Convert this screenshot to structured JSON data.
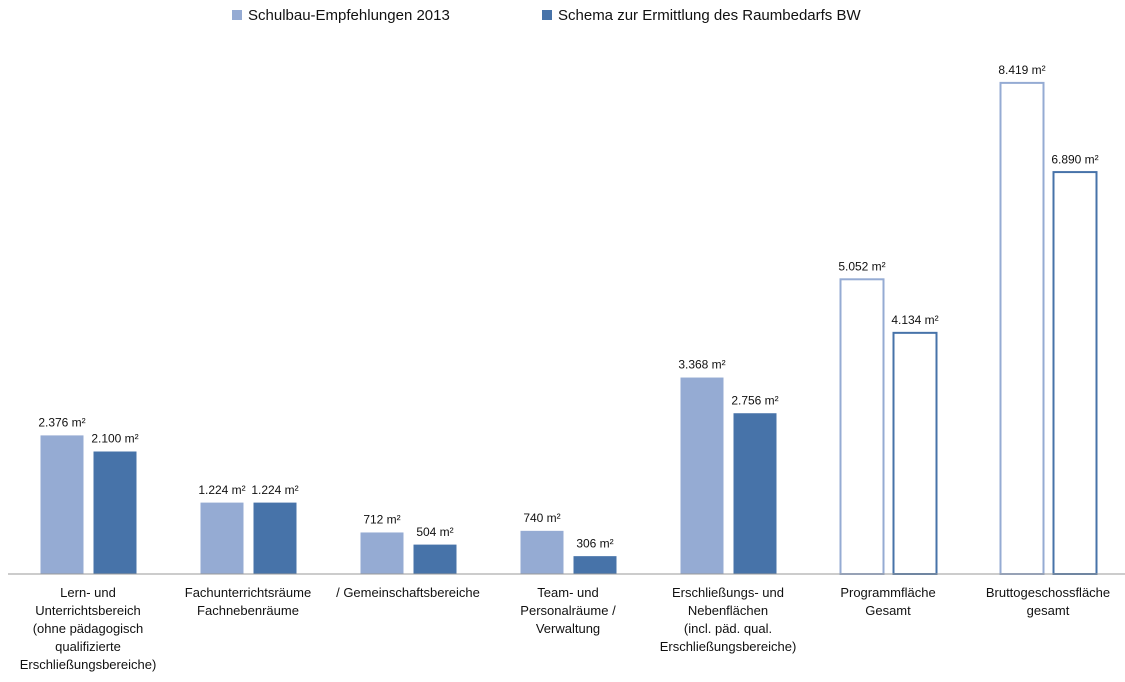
{
  "chart_data": {
    "type": "bar",
    "categories": [
      [
        "Lern- und",
        "Unterrichtsbereich",
        "(ohne pädagogisch",
        "qualifizierte",
        "Erschließungsbereiche)"
      ],
      [
        "Fachunterrichtsräume",
        "Fachnebenräume"
      ],
      [
        "/ Gemeinschaftsbereiche"
      ],
      [
        "Team- und",
        "Personalräume /",
        "Verwaltung"
      ],
      [
        "Erschließungs- und",
        "Nebenflächen",
        "(incl. päd. qual.",
        "Erschließungsbereiche)"
      ],
      [
        "Programmfläche",
        "Gesamt"
      ],
      [
        "Bruttogeschossfläche",
        "gesamt"
      ]
    ],
    "series": [
      {
        "name": "Schulbau-Empfehlungen 2013",
        "color": "#95abd3",
        "values": [
          2376,
          1224,
          712,
          740,
          3368,
          5052,
          8419
        ],
        "value_labels": [
          "2.376 m²",
          "1.224 m²",
          "712 m²",
          "740 m²",
          "3.368 m²",
          "5.052 m²",
          "8.419 m²"
        ]
      },
      {
        "name": "Schema zur Ermittlung des Raumbedarfs BW",
        "color": "#4773a9",
        "values": [
          2100,
          1224,
          504,
          306,
          2756,
          4134,
          6890
        ],
        "value_labels": [
          "2.100 m²",
          "1.224 m²",
          "504 m²",
          "306 m²",
          "2.756 m²",
          "4.134 m²",
          "6.890 m²"
        ]
      }
    ],
    "outline": [
      false,
      false,
      false,
      false,
      false,
      true,
      true
    ],
    "ylim": [
      0,
      9000
    ],
    "legend": "top"
  }
}
